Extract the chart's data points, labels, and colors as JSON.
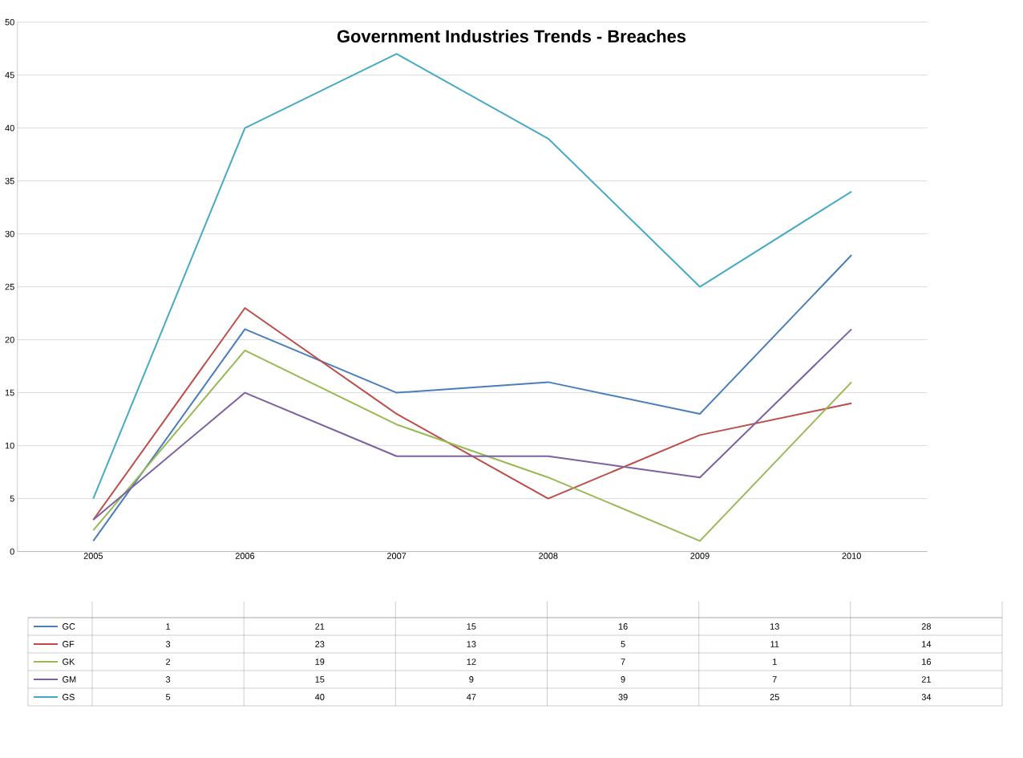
{
  "chart_data": {
    "type": "line",
    "title": "Government Industries Trends - Breaches",
    "categories": [
      "2005",
      "2006",
      "2007",
      "2008",
      "2009",
      "2010"
    ],
    "series": [
      {
        "name": "GC",
        "color": "#4a7ebb",
        "values": [
          1,
          21,
          15,
          16,
          13,
          28
        ]
      },
      {
        "name": "GF",
        "color": "#be4b48",
        "values": [
          3,
          23,
          13,
          5,
          11,
          14
        ]
      },
      {
        "name": "GK",
        "color": "#98b954",
        "values": [
          2,
          19,
          12,
          7,
          1,
          16
        ]
      },
      {
        "name": "GM",
        "color": "#7d60a0",
        "values": [
          3,
          15,
          9,
          9,
          7,
          21
        ]
      },
      {
        "name": "GS",
        "color": "#46aac5",
        "values": [
          5,
          40,
          47,
          39,
          25,
          34
        ]
      }
    ],
    "ylim": [
      0,
      50
    ],
    "yticks": [
      0,
      5,
      10,
      15,
      20,
      25,
      30,
      35,
      40,
      45,
      50
    ],
    "grid": "y",
    "data_labels": true,
    "legend": "bottom"
  }
}
